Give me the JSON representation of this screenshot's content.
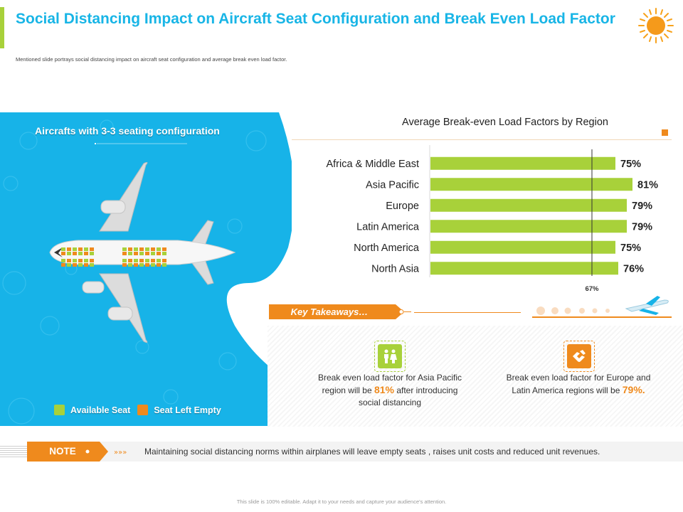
{
  "slide": {
    "title": "Social Distancing Impact on Aircraft Seat Configuration and Break Even Load Factor",
    "subtitle": "Mentioned slide portrays social distancing impact on aircraft seat configuration and average break even load factor.",
    "footer": "This slide is 100% editable. Adapt it to your needs and capture your audience's attention."
  },
  "aircraft_panel": {
    "title": "Aircrafts with 3-3 seating configuration",
    "legend": [
      {
        "label": "Available Seat",
        "color": "#a8d13a"
      },
      {
        "label": "Seat Left Empty",
        "color": "#ef8a1d"
      }
    ]
  },
  "chart_data": {
    "type": "bar",
    "orientation": "horizontal",
    "title": "Average Break-even Load Factors by Region",
    "categories": [
      "Africa & Middle East",
      "Asia Pacific",
      "Europe",
      "Latin America",
      "North America",
      "North Asia"
    ],
    "values": [
      75,
      81,
      79,
      79,
      75,
      76
    ],
    "value_labels": [
      "75%",
      "81%",
      "79%",
      "79%",
      "75%",
      "76%"
    ],
    "xlim": [
      0,
      90
    ],
    "reference_line": {
      "value": 67,
      "label": "67%"
    },
    "bar_color": "#a8d13a"
  },
  "takeaways": {
    "label": "Key Takeaways…",
    "items": [
      {
        "icon": "people-icon",
        "text_before": "Break even  load factor for Asia Pacific region will be ",
        "highlight": "81%",
        "text_after": " after introducing social distancing",
        "accent": "#a8d13a"
      },
      {
        "icon": "handshake-icon",
        "text_before": "Break even  load factor for Europe and Latin America regions will be ",
        "highlight": "79%.",
        "text_after": "",
        "accent": "#ef8a1d"
      }
    ]
  },
  "note": {
    "label": "NOTE",
    "text": "Maintaining social distancing norms within airplanes will leave empty seats , raises unit costs and reduced unit revenues."
  },
  "colors": {
    "title": "#18b5e6",
    "panel_blue": "#17b3e8",
    "green": "#a8d13a",
    "orange": "#ef8a1d"
  }
}
